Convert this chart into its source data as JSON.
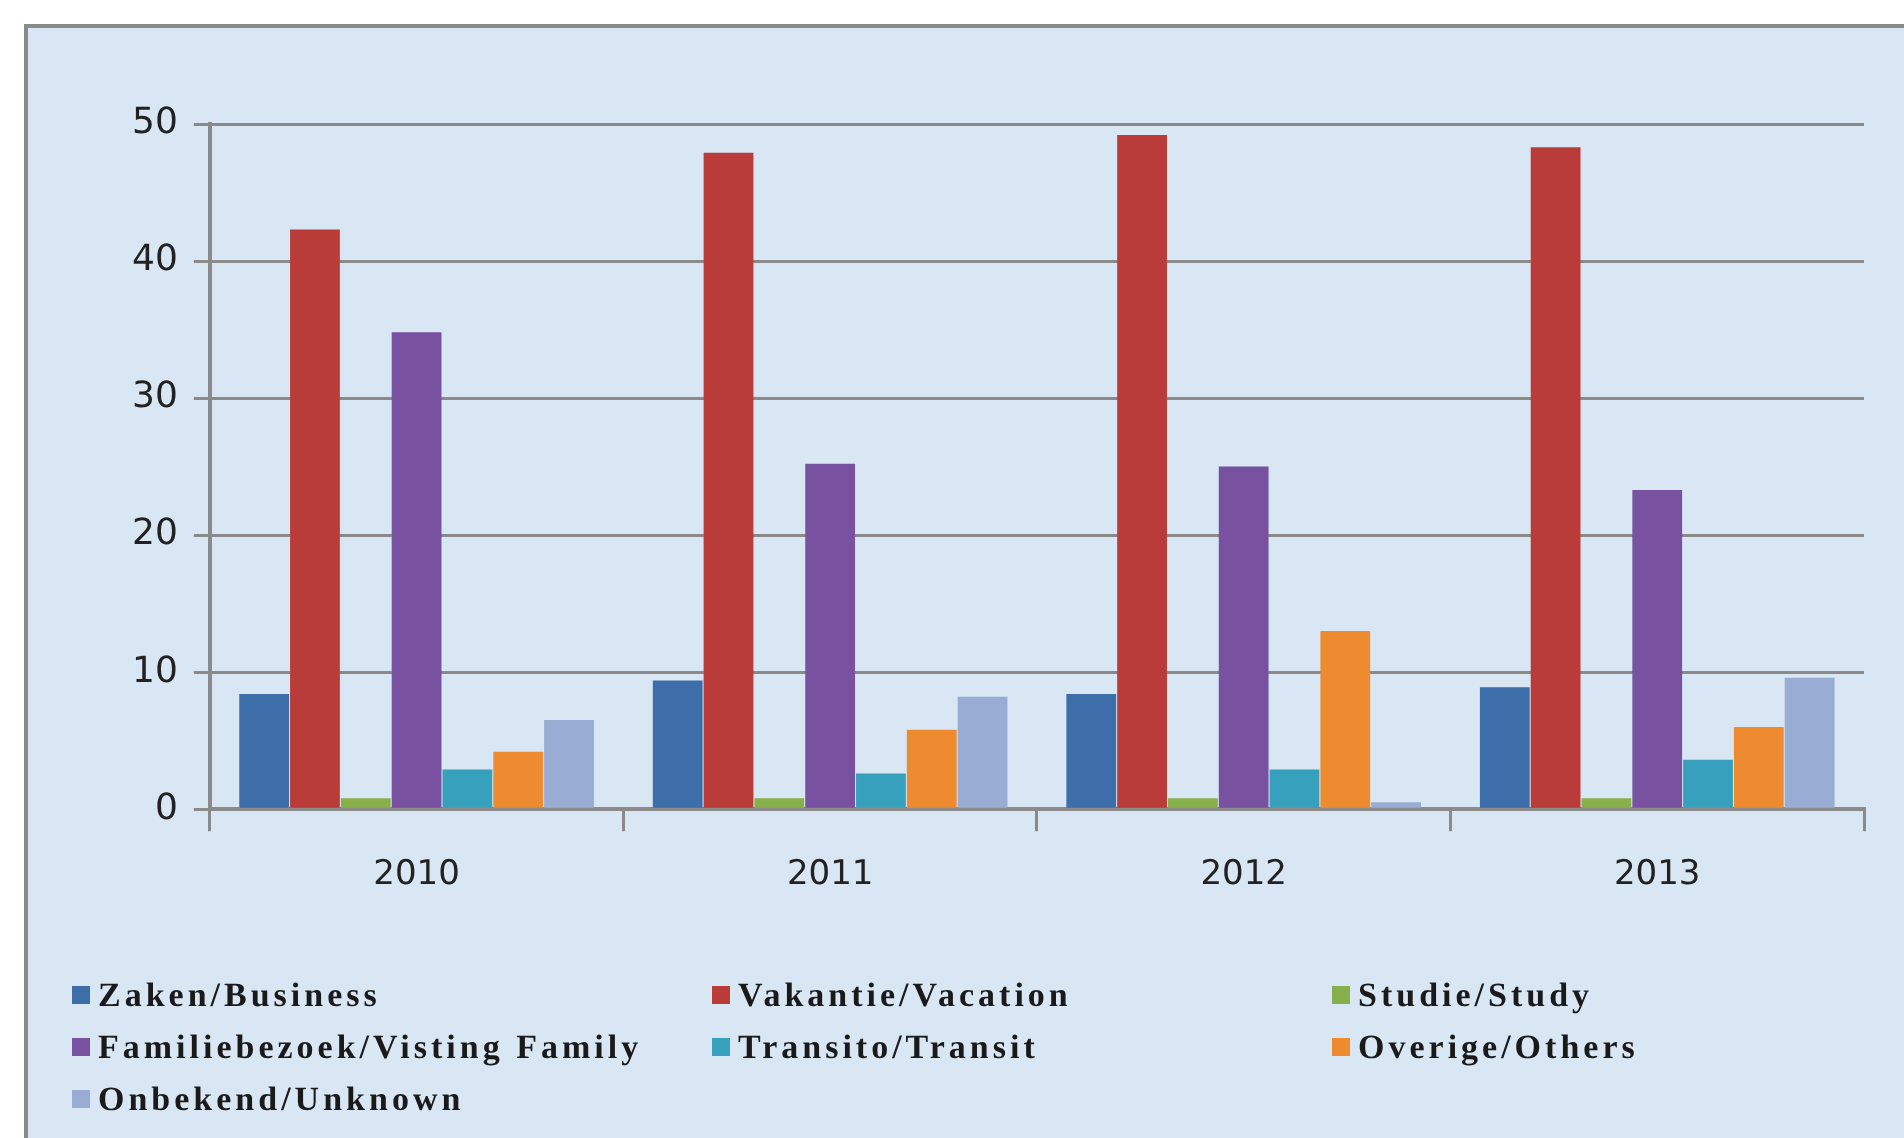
{
  "chart_data": {
    "type": "bar",
    "categories": [
      "2010",
      "2011",
      "2012",
      "2013"
    ],
    "series": [
      {
        "name": "Zaken/Business",
        "color": "#3d6ea9",
        "values": [
          8.4,
          9.4,
          8.4,
          8.9
        ]
      },
      {
        "name": "Vakantie/Vacation",
        "color": "#b93c39",
        "values": [
          42.3,
          47.9,
          49.2,
          48.3
        ]
      },
      {
        "name": "Studie/Study",
        "color": "#88b04a",
        "values": [
          0.8,
          0.8,
          0.8,
          0.8
        ]
      },
      {
        "name": "Familiebezoek/Visting Family",
        "color": "#7852a0",
        "values": [
          34.8,
          25.2,
          25.0,
          23.3
        ]
      },
      {
        "name": "Transito/Transit",
        "color": "#37a0bd",
        "values": [
          2.9,
          2.6,
          2.9,
          3.6
        ]
      },
      {
        "name": "Overige/Others",
        "color": "#ee8a30",
        "values": [
          4.2,
          5.8,
          13.0,
          6.0
        ]
      },
      {
        "name": "Onbekend/Unknown",
        "color": "#98acd4",
        "values": [
          6.5,
          8.2,
          0.5,
          9.6
        ]
      }
    ],
    "ylim": [
      0,
      50
    ],
    "yticks": [
      0,
      10,
      20,
      30,
      40,
      50
    ],
    "grid": "y",
    "legend": "bottom"
  }
}
